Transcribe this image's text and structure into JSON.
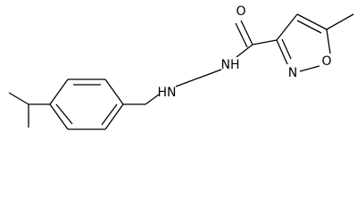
{
  "atoms": {
    "carbonyl_oxygen": "O",
    "hydrazine_n1": "HN",
    "hydrazine_n2": "NH",
    "ring_nitrogen": "N",
    "ring_oxygen": "O"
  }
}
